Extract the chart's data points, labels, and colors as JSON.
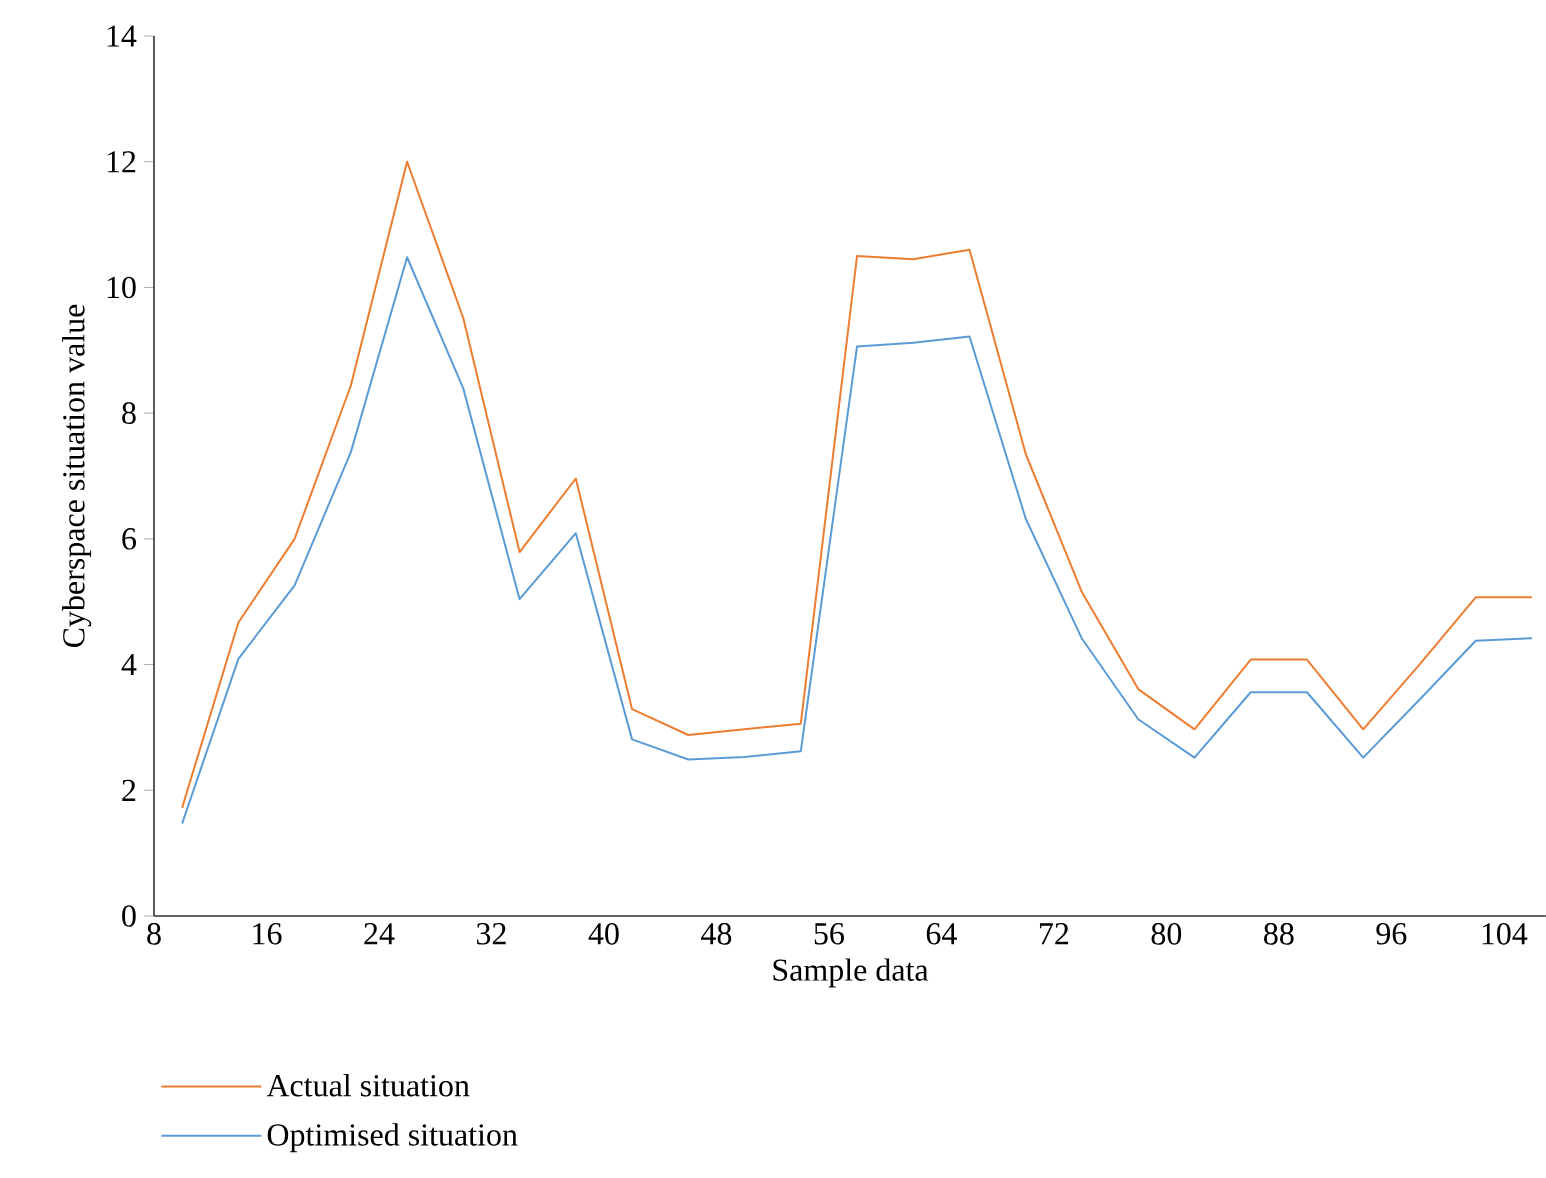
{
  "chart_data": {
    "type": "line",
    "xlabel": "Sample data",
    "ylabel": "Cyberspace situation value",
    "x": [
      10,
      14,
      18,
      22,
      26,
      30,
      34,
      38,
      42,
      46,
      50,
      54,
      58,
      62,
      66,
      70,
      74,
      78,
      82,
      86,
      90,
      94,
      98,
      102,
      106
    ],
    "series": [
      {
        "name": "Actual situation",
        "color": "#ed7d31",
        "values": [
          1.72,
          4.67,
          6.0,
          8.44,
          12.0,
          9.51,
          5.79,
          6.96,
          3.29,
          2.88,
          2.97,
          3.06,
          10.5,
          10.45,
          10.6,
          7.35,
          5.15,
          3.61,
          2.97,
          4.08,
          4.08,
          2.97,
          4.0,
          5.07,
          5.07
        ]
      },
      {
        "name": "Optimised situation",
        "color": "#5b9bd5",
        "values": [
          1.47,
          4.09,
          5.26,
          7.38,
          10.48,
          8.39,
          5.04,
          6.09,
          2.81,
          2.49,
          2.53,
          2.62,
          9.06,
          9.12,
          9.22,
          6.32,
          4.41,
          3.13,
          2.52,
          3.56,
          3.56,
          2.52,
          3.44,
          4.38,
          4.42
        ]
      }
    ],
    "xlim": [
      8,
      107
    ],
    "xticks": [
      8,
      16,
      24,
      32,
      40,
      48,
      56,
      64,
      72,
      80,
      88,
      96,
      104
    ],
    "ylim": [
      0,
      14
    ],
    "yticks": [
      0,
      2,
      4,
      6,
      8,
      10,
      12,
      14
    ],
    "grid": false,
    "legend": "bottom left",
    "marker": "none",
    "line_style": "solid"
  }
}
